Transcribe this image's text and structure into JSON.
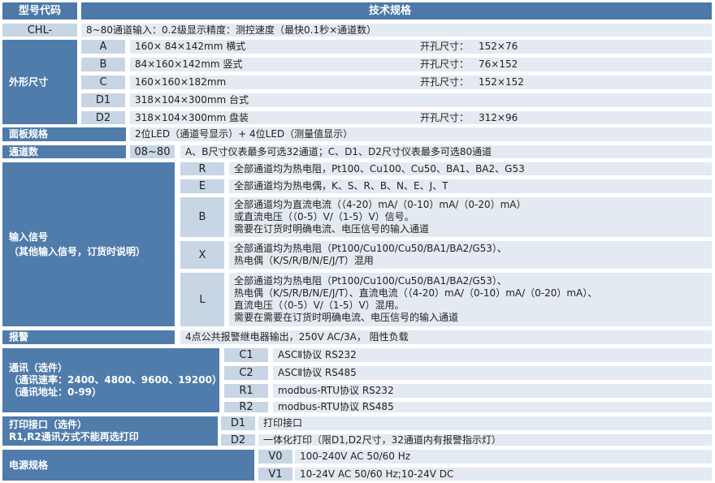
{
  "header": {
    "model_code": "型号代码",
    "tech_spec": "技术规格"
  },
  "chl": {
    "code": "CHL-",
    "desc": "8~80通道输入：0.2级显示精度：测控速度（最快0.1秒×通道数）"
  },
  "dimensions": {
    "label": "外形尺寸",
    "cutout_label": "开孔尺寸：",
    "items": [
      {
        "code": "A",
        "size": "160× 84×142mm 横式",
        "cutout": "152×76"
      },
      {
        "code": "B",
        "size": "84×160×142mm 竖式",
        "cutout": "76×152"
      },
      {
        "code": "C",
        "size": "160×160×182mm",
        "cutout": "152×152"
      },
      {
        "code": "D1",
        "size": "318×104×300mm 台式",
        "cutout": ""
      },
      {
        "code": "D2",
        "size": "318×104×300mm 盘装",
        "cutout": "312×96"
      }
    ]
  },
  "panel": {
    "label": "面板规格",
    "desc": "2位LED（通道号显示）+ 4位LED（测量值显示）"
  },
  "channels": {
    "label": "通道数",
    "code": "08~80",
    "desc": "A、B尺寸仪表最多可选32通道；C、D1、D2尺寸仪表最多可选80通道"
  },
  "input": {
    "label": "输入信号",
    "sublabel": "（其他输入信号，订货时说明）",
    "items": [
      {
        "code": "R",
        "lines": [
          "全部通道均为热电阻，Pt100、Cu100、Cu50、BA1、BA2、G53"
        ]
      },
      {
        "code": "E",
        "lines": [
          "全部通道均为热电偶，K、S、R、B、N、E、J、T"
        ]
      },
      {
        "code": "B",
        "lines": [
          "全部通道均为直流电流（（4-20）mA/（0-10）mA/（0-20）mA）",
          "或直流电压（（0-5）V/（1-5）V）信号。",
          "需要在订货时明确电流、电压信号的输入通道"
        ]
      },
      {
        "code": "X",
        "lines": [
          "全部通道均为热电阻（Pt100/Cu100/Cu50/BA1/BA2/G53）、",
          "热电偶（K/S/R/B/N/E/J/T）混用"
        ]
      },
      {
        "code": "L",
        "lines": [
          "全部通道均为热电阻（Pt100/Cu100/Cu50/BA1/BA2/G53）、",
          "热电偶（K/S/R/B/N/E/J/T）、直流电流（（4-20）mA/（0-10）mA/（0-20）mA）、",
          "直流电压（（0-5）V/（1-5）V）混用。",
          "需要在需要在订货时明确电流、电压信号的输入通道"
        ]
      }
    ]
  },
  "alarm": {
    "label": "报警",
    "desc": "4点公共报警继电器输出，250V AC/3A， 阻性负载"
  },
  "comm": {
    "label": "通讯（选件）",
    "rate": "（通讯速率：2400、4800、9600、19200）",
    "address": "（通讯地址：0-99）",
    "items": [
      {
        "code": "C1",
        "desc": "ASCⅡ协议 RS232"
      },
      {
        "code": "C2",
        "desc": "ASCⅡ协议 RS485"
      },
      {
        "code": "R1",
        "desc": "modbus-RTU协议 RS232"
      },
      {
        "code": "R2",
        "desc": "modbus-RTU协议 RS485"
      }
    ]
  },
  "print": {
    "label": "打印接口（选件）",
    "note": "R1,R2通讯方式不能再选打印",
    "items": [
      {
        "code": "D1",
        "desc": "打印接口"
      },
      {
        "code": "D2",
        "desc": "一体化打印（限D1,D2尺寸，32通道内有报警指示灯）"
      }
    ]
  },
  "power": {
    "label": "电源规格",
    "items": [
      {
        "code": "V0",
        "desc": "100-240V AC 50/60 Hz"
      },
      {
        "code": "V1",
        "desc": "10-24V AC 50/60 Hz;10-24V DC"
      }
    ]
  }
}
